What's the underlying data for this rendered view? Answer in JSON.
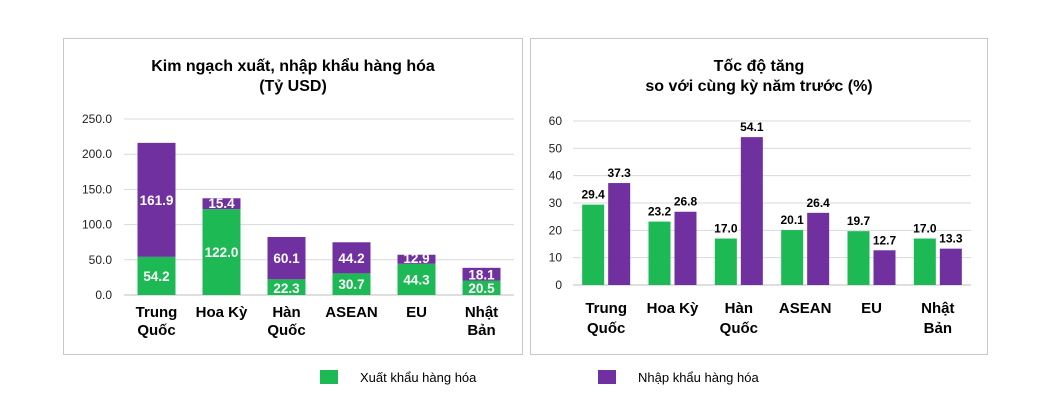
{
  "colors": {
    "export": "#1db954",
    "import": "#7030a0",
    "grid": "#d9d9d9"
  },
  "legend": {
    "export_label": "Xuất khẩu hàng hóa",
    "import_label": "Nhập khẩu hàng hóa"
  },
  "chart_data": [
    {
      "type": "bar",
      "stacked": true,
      "title": "Kim ngạch xuất, nhập khẩu hàng hóa",
      "subtitle": "(Tỷ USD)",
      "categories": [
        [
          "Trung",
          "Quốc"
        ],
        [
          "Hoa Kỳ"
        ],
        [
          "Hàn",
          "Quốc"
        ],
        [
          "ASEAN"
        ],
        [
          "EU"
        ],
        [
          "Nhật",
          "Bản"
        ]
      ],
      "series": [
        {
          "name": "Xuất khẩu hàng hóa",
          "values": [
            54.2,
            122.0,
            22.3,
            30.7,
            44.3,
            20.5
          ]
        },
        {
          "name": "Nhập khẩu hàng hóa",
          "values": [
            161.9,
            15.4,
            60.1,
            44.2,
            12.9,
            18.1
          ]
        }
      ],
      "ylim": [
        0,
        250
      ],
      "yticks": [
        "0.0",
        "50.0",
        "100.0",
        "150.0",
        "200.0",
        "250.0"
      ],
      "grid": true
    },
    {
      "type": "bar",
      "stacked": false,
      "title": "Tốc độ tăng",
      "subtitle": "so với cùng kỳ năm trước (%)",
      "categories": [
        [
          "Trung",
          "Quốc"
        ],
        [
          "Hoa Kỳ"
        ],
        [
          "Hàn",
          "Quốc"
        ],
        [
          "ASEAN"
        ],
        [
          "EU"
        ],
        [
          "Nhật",
          "Bản"
        ]
      ],
      "series": [
        {
          "name": "Xuất khẩu hàng hóa",
          "values": [
            29.4,
            23.2,
            17.0,
            20.1,
            19.7,
            17.0
          ]
        },
        {
          "name": "Nhập khẩu hàng hóa",
          "values": [
            37.3,
            26.8,
            54.1,
            26.4,
            12.7,
            13.3
          ]
        }
      ],
      "ylim": [
        0,
        60
      ],
      "yticks": [
        "0",
        "10",
        "20",
        "30",
        "40",
        "50",
        "60"
      ],
      "grid": true
    }
  ]
}
